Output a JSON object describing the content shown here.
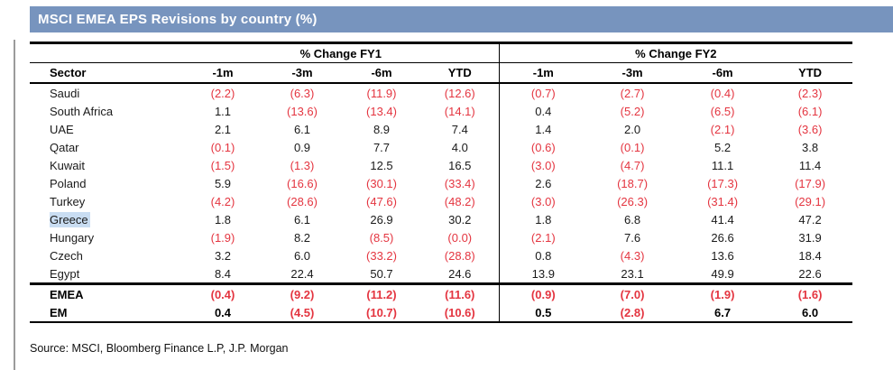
{
  "title": "MSCI EMEA EPS Revisions by country (%)",
  "colors": {
    "titlebar": "#7794be",
    "neg": "#e43540",
    "highlight": "#c9ddf2"
  },
  "table": {
    "sector_header": "Sector",
    "groups": [
      {
        "label": "% Change FY1"
      },
      {
        "label": "% Change FY2"
      }
    ],
    "sub_headers": [
      "-1m",
      "-3m",
      "-6m",
      "YTD",
      "-1m",
      "-3m",
      "-6m",
      "YTD"
    ],
    "rows": [
      {
        "sector": "Saudi",
        "highlight": false,
        "bold": false,
        "values": [
          "(2.2)",
          "(6.3)",
          "(11.9)",
          "(12.6)",
          "(0.7)",
          "(2.7)",
          "(0.4)",
          "(2.3)"
        ]
      },
      {
        "sector": "South Africa",
        "highlight": false,
        "bold": false,
        "values": [
          "1.1",
          "(13.6)",
          "(13.4)",
          "(14.1)",
          "0.4",
          "(5.2)",
          "(6.5)",
          "(6.1)"
        ]
      },
      {
        "sector": "UAE",
        "highlight": false,
        "bold": false,
        "values": [
          "2.1",
          "6.1",
          "8.9",
          "7.4",
          "1.4",
          "2.0",
          "(2.1)",
          "(3.6)"
        ]
      },
      {
        "sector": "Qatar",
        "highlight": false,
        "bold": false,
        "values": [
          "(0.1)",
          "0.9",
          "7.7",
          "4.0",
          "(0.6)",
          "(0.1)",
          "5.2",
          "3.8"
        ]
      },
      {
        "sector": "Kuwait",
        "highlight": false,
        "bold": false,
        "values": [
          "(1.5)",
          "(1.3)",
          "12.5",
          "16.5",
          "(3.0)",
          "(4.7)",
          "11.1",
          "11.4"
        ]
      },
      {
        "sector": "Poland",
        "highlight": false,
        "bold": false,
        "values": [
          "5.9",
          "(16.6)",
          "(30.1)",
          "(33.4)",
          "2.6",
          "(18.7)",
          "(17.3)",
          "(17.9)"
        ]
      },
      {
        "sector": "Turkey",
        "highlight": false,
        "bold": false,
        "values": [
          "(4.2)",
          "(28.6)",
          "(47.6)",
          "(48.2)",
          "(3.0)",
          "(26.3)",
          "(31.4)",
          "(29.1)"
        ]
      },
      {
        "sector": "Greece",
        "highlight": true,
        "bold": false,
        "values": [
          "1.8",
          "6.1",
          "26.9",
          "30.2",
          "1.8",
          "6.8",
          "41.4",
          "47.2"
        ]
      },
      {
        "sector": "Hungary",
        "highlight": false,
        "bold": false,
        "values": [
          "(1.9)",
          "8.2",
          "(8.5)",
          "(0.0)",
          "(2.1)",
          "7.6",
          "26.6",
          "31.9"
        ]
      },
      {
        "sector": "Czech",
        "highlight": false,
        "bold": false,
        "values": [
          "3.2",
          "6.0",
          "(33.2)",
          "(28.8)",
          "0.8",
          "(4.3)",
          "13.6",
          "18.4"
        ]
      },
      {
        "sector": "Egypt",
        "highlight": false,
        "bold": false,
        "values": [
          "8.4",
          "22.4",
          "50.7",
          "24.6",
          "13.9",
          "23.1",
          "49.9",
          "22.6"
        ]
      },
      {
        "sector": "EMEA",
        "highlight": false,
        "bold": true,
        "values": [
          "(0.4)",
          "(9.2)",
          "(11.2)",
          "(11.6)",
          "(0.9)",
          "(7.0)",
          "(1.9)",
          "(1.6)"
        ]
      },
      {
        "sector": "EM",
        "highlight": false,
        "bold": true,
        "values": [
          "0.4",
          "(4.5)",
          "(10.7)",
          "(10.6)",
          "0.5",
          "(2.8)",
          "6.7",
          "6.0"
        ]
      }
    ]
  },
  "source": "Source: MSCI, Bloomberg Finance L.P, J.P. Morgan"
}
